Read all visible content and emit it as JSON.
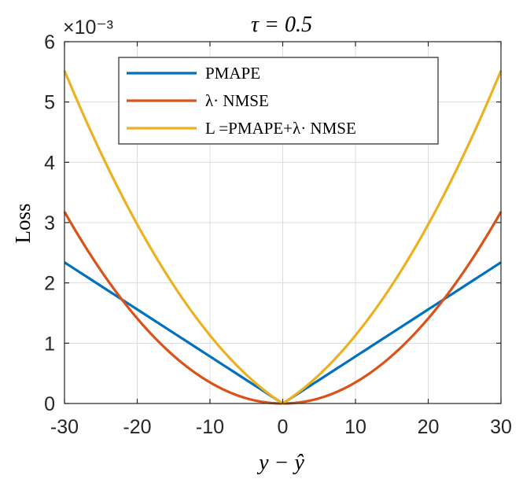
{
  "chart_data": {
    "type": "line",
    "title": "τ = 0.5",
    "xlabel": "y − ŷ",
    "ylabel": "Loss",
    "xlim": [
      -30,
      30
    ],
    "ylim": [
      0,
      6
    ],
    "x_ticks": [
      "-30",
      "-20",
      "-10",
      "0",
      "10",
      "20",
      "30"
    ],
    "y_ticks": [
      "0",
      "1",
      "2",
      "3",
      "4",
      "5",
      "6"
    ],
    "y_exponent": "×10⁻³",
    "grid": true,
    "legend_position": "top-center",
    "x": [
      -30,
      -25,
      -20,
      -15,
      -10,
      -5,
      0,
      5,
      10,
      15,
      20,
      25,
      30
    ],
    "series": [
      {
        "name": "PMAPE",
        "color": "#0072BD",
        "values": [
          2.34,
          1.95,
          1.56,
          1.17,
          0.78,
          0.39,
          0.0,
          0.39,
          0.78,
          1.17,
          1.56,
          1.95,
          2.34
        ]
      },
      {
        "name": "λ· NMSE",
        "color": "#D95319",
        "values": [
          3.18,
          2.21,
          1.41,
          0.8,
          0.35,
          0.09,
          0.0,
          0.09,
          0.35,
          0.8,
          1.41,
          2.21,
          3.18
        ]
      },
      {
        "name": "L =PMAPE+λ· NMSE",
        "color": "#EDB120",
        "values": [
          5.52,
          4.16,
          2.97,
          1.97,
          1.13,
          0.48,
          0.0,
          0.48,
          1.13,
          1.97,
          2.97,
          4.16,
          5.52
        ]
      }
    ]
  }
}
